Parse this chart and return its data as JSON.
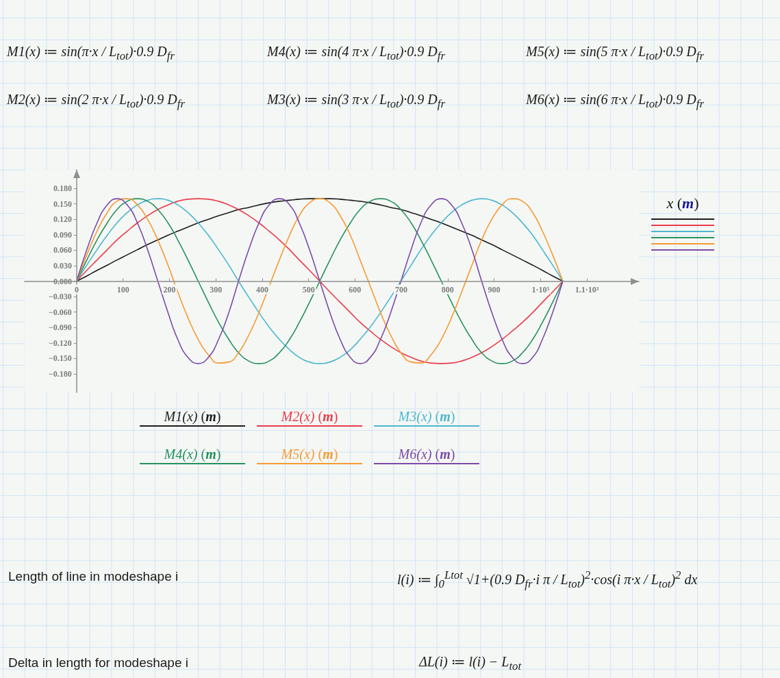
{
  "chart_data": {
    "type": "line",
    "annotations": [
      "M1(x) ≔ sin(π·x / L$_{tot}$)·0.9 D$_{fr}$",
      "M4(x) ≔ sin(4 π·x / L$_{tot}$)·0.9 D$_{fr}$",
      "M5(x) ≔ sin(5 π·x / L$_{tot}$)·0.9 D$_{fr}$",
      "M2(x) ≔ sin(2 π·x / L$_{tot}$)·0.9 D$_{fr}$",
      "M3(x) ≔ sin(3 π·x / L$_{tot}$)·0.9 D$_{fr}$",
      "M6(x) ≔ sin(6 π·x / L$_{tot}$)·0.9 D$_{fr}$",
      "Length of line in modeshape i",
      "l(i) ≔ ∫$_{0}$$^{Ltot}$ √1+(0.9 D$_{fr}$·i π / L$_{tot}$)$^{2}$·cos(i π·x / L$_{tot}$)$^{2}$ dx",
      "Delta in length for modeshape i",
      "ΔL(i) ≔ l(i) − L$_{tot}$"
    ],
    "xlabel": "x (m)",
    "x": [
      0,
      22,
      44,
      66,
      87,
      109,
      131,
      153,
      175,
      197,
      218,
      240,
      262,
      284,
      306,
      328,
      349,
      371,
      393,
      415,
      437,
      459,
      480,
      502,
      524,
      546,
      568,
      590,
      611,
      633,
      655,
      677,
      699,
      721,
      742,
      764,
      786,
      808,
      830,
      852,
      873,
      895,
      917,
      939,
      961,
      983,
      1004,
      1026,
      1048
    ],
    "series": [
      {
        "name": "M1(x) (m)",
        "color": "#1c1c1c",
        "values": [
          0,
          0.01,
          0.021,
          0.031,
          0.041,
          0.051,
          0.061,
          0.071,
          0.08,
          0.089,
          0.097,
          0.105,
          0.113,
          0.12,
          0.127,
          0.133,
          0.139,
          0.143,
          0.148,
          0.152,
          0.155,
          0.157,
          0.159,
          0.16,
          0.16,
          0.16,
          0.159,
          0.157,
          0.155,
          0.152,
          0.148,
          0.143,
          0.139,
          0.133,
          0.127,
          0.12,
          0.113,
          0.105,
          0.097,
          0.089,
          0.08,
          0.071,
          0.061,
          0.051,
          0.041,
          0.031,
          0.021,
          0.01,
          0
        ]
      },
      {
        "name": "M2(x) (m)",
        "color": "#ec3b4c",
        "values": [
          0,
          0.021,
          0.041,
          0.061,
          0.08,
          0.097,
          0.113,
          0.127,
          0.139,
          0.148,
          0.155,
          0.159,
          0.16,
          0.159,
          0.155,
          0.148,
          0.139,
          0.127,
          0.113,
          0.097,
          0.08,
          0.061,
          0.041,
          0.021,
          0,
          -0.021,
          -0.041,
          -0.061,
          -0.08,
          -0.097,
          -0.113,
          -0.127,
          -0.139,
          -0.148,
          -0.155,
          -0.159,
          -0.16,
          -0.159,
          -0.155,
          -0.148,
          -0.139,
          -0.127,
          -0.113,
          -0.097,
          -0.08,
          -0.061,
          -0.041,
          -0.021,
          0
        ]
      },
      {
        "name": "M3(x) (m)",
        "color": "#4db6d0",
        "values": [
          0,
          0.031,
          0.061,
          0.089,
          0.113,
          0.133,
          0.148,
          0.157,
          0.16,
          0.157,
          0.148,
          0.133,
          0.113,
          0.089,
          0.061,
          0.031,
          0,
          -0.031,
          -0.061,
          -0.089,
          -0.113,
          -0.133,
          -0.148,
          -0.157,
          -0.16,
          -0.157,
          -0.148,
          -0.133,
          -0.113,
          -0.089,
          -0.061,
          -0.031,
          0,
          0.031,
          0.061,
          0.089,
          0.113,
          0.133,
          0.148,
          0.157,
          0.16,
          0.157,
          0.148,
          0.133,
          0.113,
          0.089,
          0.061,
          0.031,
          0
        ]
      },
      {
        "name": "M4(x) (m)",
        "color": "#27915e",
        "values": [
          0,
          0.041,
          0.08,
          0.113,
          0.139,
          0.155,
          0.16,
          0.155,
          0.139,
          0.113,
          0.08,
          0.041,
          0,
          -0.041,
          -0.08,
          -0.113,
          -0.139,
          -0.155,
          -0.16,
          -0.155,
          -0.139,
          -0.113,
          -0.08,
          -0.041,
          0,
          0.041,
          0.08,
          0.113,
          0.139,
          0.155,
          0.16,
          0.155,
          0.139,
          0.113,
          0.08,
          0.041,
          0,
          -0.041,
          -0.08,
          -0.113,
          -0.139,
          -0.155,
          -0.16,
          -0.155,
          -0.139,
          -0.113,
          -0.08,
          -0.041,
          0
        ]
      },
      {
        "name": "M5(x) (m)",
        "color": "#f79a34",
        "values": [
          0,
          0.051,
          0.097,
          0.133,
          0.155,
          0.16,
          0.148,
          0.12,
          0.08,
          0.031,
          -0.021,
          -0.071,
          -0.113,
          -0.143,
          -0.159,
          -0.157,
          -0.139,
          -0.105,
          -0.061,
          -0.01,
          0.041,
          0.089,
          0.127,
          0.152,
          0.16,
          0.152,
          0.127,
          0.089,
          0.041,
          -0.01,
          -0.061,
          -0.105,
          -0.139,
          -0.157,
          -0.159,
          -0.143,
          -0.113,
          -0.071,
          -0.021,
          0.031,
          0.08,
          0.12,
          0.148,
          0.16,
          0.155,
          0.133,
          0.097,
          0.051,
          0
        ]
      },
      {
        "name": "M6(x) (m)",
        "color": "#7d4aa8",
        "values": [
          0,
          0.061,
          0.113,
          0.148,
          0.16,
          0.148,
          0.113,
          0.061,
          0,
          -0.061,
          -0.113,
          -0.148,
          -0.16,
          -0.148,
          -0.113,
          -0.061,
          0,
          0.061,
          0.113,
          0.148,
          0.16,
          0.148,
          0.113,
          0.061,
          0,
          -0.061,
          -0.113,
          -0.148,
          -0.16,
          -0.148,
          -0.113,
          -0.061,
          0,
          0.061,
          0.113,
          0.148,
          0.16,
          0.148,
          0.113,
          0.061,
          0,
          -0.061,
          -0.113,
          -0.148,
          -0.16,
          -0.148,
          -0.113,
          -0.061,
          0
        ]
      }
    ],
    "xlim": [
      -112,
      1212
    ],
    "xticks": [
      0,
      100,
      200,
      300,
      400,
      500,
      600,
      700,
      800,
      900,
      {
        "value": 1000,
        "label": "1·10³"
      },
      {
        "value": 1100,
        "label": "1.1·10³"
      }
    ],
    "ylim": [
      -0.216,
      0.216
    ],
    "yticks": [
      {
        "value": -0.18,
        "label": "−0.180"
      },
      {
        "value": -0.15,
        "label": "−0.150"
      },
      {
        "value": -0.12,
        "label": "−0.120"
      },
      {
        "value": -0.09,
        "label": "−0.090"
      },
      {
        "value": -0.06,
        "label": "−0.060"
      },
      {
        "value": -0.03,
        "label": "−0.030"
      },
      {
        "value": 0,
        "label": "0.000"
      },
      {
        "value": 0.03,
        "label": "0.030"
      },
      {
        "value": 0.06,
        "label": "0.060"
      },
      {
        "value": 0.09,
        "label": "0.090"
      },
      {
        "value": 0.12,
        "label": "0.120"
      },
      {
        "value": 0.15,
        "label": "0.150"
      },
      {
        "value": 0.18,
        "label": "0.180"
      }
    ],
    "grid": false,
    "legend": "bottom",
    "marker": "none",
    "line_style": "solid"
  }
}
